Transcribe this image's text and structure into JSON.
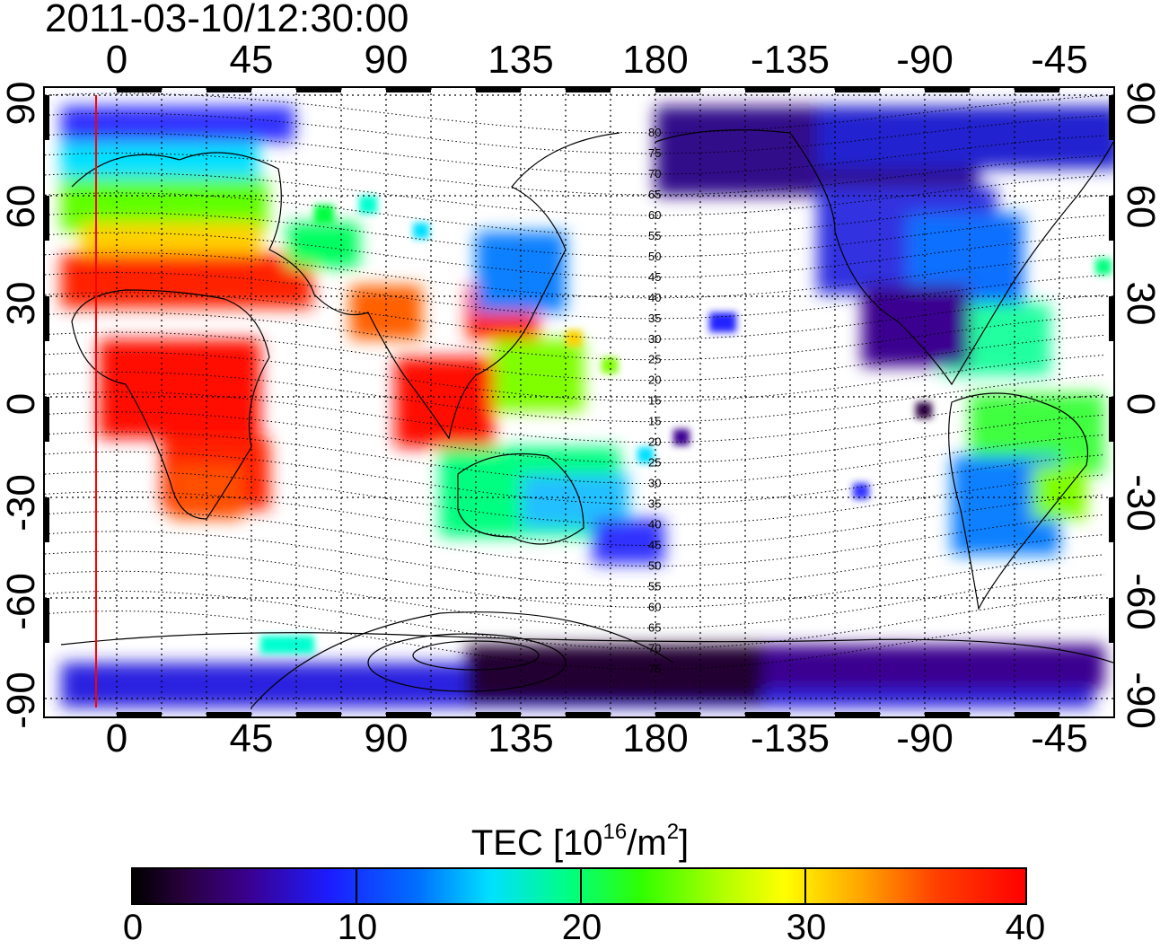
{
  "timestamp": "2011-03-10/12:30:00",
  "axes": {
    "lon_ticks": [
      "0",
      "45",
      "90",
      "135",
      "180",
      "-135",
      "-90",
      "-45"
    ],
    "lat_ticks": [
      "90",
      "60",
      "30",
      "0",
      "-30",
      "-60",
      "-90"
    ]
  },
  "mlat_labels": [
    "80",
    "75",
    "70",
    "65",
    "60",
    "55",
    "50",
    "45",
    "40",
    "35",
    "30",
    "25",
    "20",
    "15",
    "15",
    "20",
    "25",
    "30",
    "35",
    "40",
    "45",
    "50",
    "55",
    "60",
    "65",
    "70",
    "75"
  ],
  "colorbar": {
    "title_prefix": "TEC  [10",
    "title_sup1": "16",
    "title_mid": "/m",
    "title_sup2": "2",
    "title_suffix": "]",
    "ticks": [
      "0",
      "10",
      "20",
      "30",
      "40"
    ]
  },
  "colors": {
    "tec_max": "#ff0000",
    "tec_min": "#000000",
    "marker_line": "#ff0000"
  }
}
